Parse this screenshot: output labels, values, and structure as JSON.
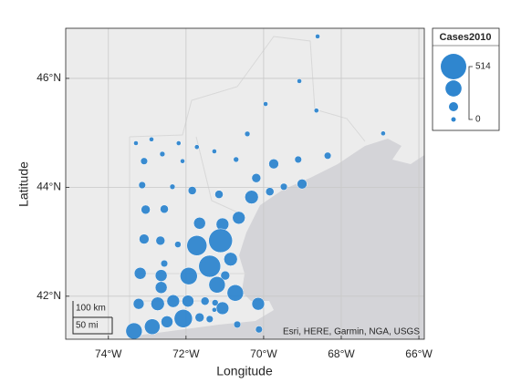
{
  "chart_data": {
    "type": "geobubble",
    "xlabel": "Longitude",
    "ylabel": "Latitude",
    "size_legend_title": "Cases2010",
    "color": "#2f86cf",
    "grid": true,
    "legend_position": "top-right-outside",
    "xlim": [
      -75.1,
      -65.86
    ],
    "ylim": [
      41.21,
      46.92
    ],
    "xticks": [
      {
        "value": -74,
        "label": "74°W"
      },
      {
        "value": -72,
        "label": "72°W"
      },
      {
        "value": -70,
        "label": "70°W"
      },
      {
        "value": -68,
        "label": "68°W"
      },
      {
        "value": -66,
        "label": "66°W"
      }
    ],
    "yticks": [
      {
        "value": 42,
        "label": "42°N"
      },
      {
        "value": 44,
        "label": "44°N"
      },
      {
        "value": 46,
        "label": "46°N"
      }
    ],
    "sizelimits": [
      0,
      514
    ],
    "scalebar": [
      "100 km",
      "50 mi"
    ],
    "attribution": "Esri, HERE, Garmin, NGA, USGS",
    "x": [
      -68.61,
      -69.08,
      -69.95,
      -68.64,
      -66.92,
      -73.29,
      -72.89,
      -72.61,
      -72.19,
      -71.72,
      -71.27,
      -70.42,
      -73.08,
      -72.09,
      -70.71,
      -69.74,
      -68.35,
      -69.11,
      -70.19,
      -69.84,
      -69.48,
      -69.01,
      -73.13,
      -72.35,
      -71.84,
      -71.15,
      -70.31,
      -73.04,
      -72.56,
      -71.65,
      -71.06,
      -70.64,
      -72.21,
      -73.08,
      -72.66,
      -71.72,
      -71.11,
      -70.85,
      -72.56,
      -73.18,
      -72.64,
      -71.93,
      -71.39,
      -70.99,
      -71.2,
      -72.64,
      -70.73,
      -73.22,
      -72.73,
      -72.33,
      -71.95,
      -71.51,
      -71.25,
      -71.06,
      -70.14,
      -71.27,
      -73.34,
      -72.87,
      -72.49,
      -72.07,
      -71.65,
      -71.39,
      -70.68,
      -70.12
    ],
    "y": [
      46.77,
      45.95,
      45.53,
      45.41,
      44.99,
      44.81,
      44.88,
      44.61,
      44.81,
      44.74,
      44.66,
      44.98,
      44.48,
      44.48,
      44.51,
      44.43,
      44.58,
      44.51,
      44.17,
      43.92,
      44.01,
      44.06,
      44.04,
      44.01,
      43.94,
      43.87,
      43.82,
      43.59,
      43.6,
      43.34,
      43.32,
      43.44,
      42.95,
      43.05,
      43.02,
      42.93,
      43.02,
      42.68,
      42.6,
      42.42,
      42.38,
      42.37,
      42.55,
      42.38,
      42.21,
      42.16,
      42.06,
      41.86,
      41.86,
      41.91,
      41.91,
      41.91,
      41.88,
      41.78,
      41.86,
      41.75,
      41.36,
      41.44,
      41.53,
      41.59,
      41.61,
      41.58,
      41.48,
      41.39
    ],
    "sizes": [
      2,
      3,
      3,
      3,
      3,
      2,
      3,
      20,
      3,
      3,
      3,
      20,
      60,
      2,
      20,
      130,
      60,
      60,
      110,
      90,
      60,
      130,
      60,
      20,
      90,
      90,
      220,
      110,
      90,
      180,
      200,
      200,
      45,
      130,
      110,
      380,
      470,
      220,
      60,
      180,
      180,
      310,
      425,
      110,
      290,
      180,
      290,
      155,
      220,
      200,
      180,
      90,
      45,
      200,
      200,
      3,
      290,
      270,
      180,
      335,
      110,
      60,
      60,
      60
    ]
  }
}
